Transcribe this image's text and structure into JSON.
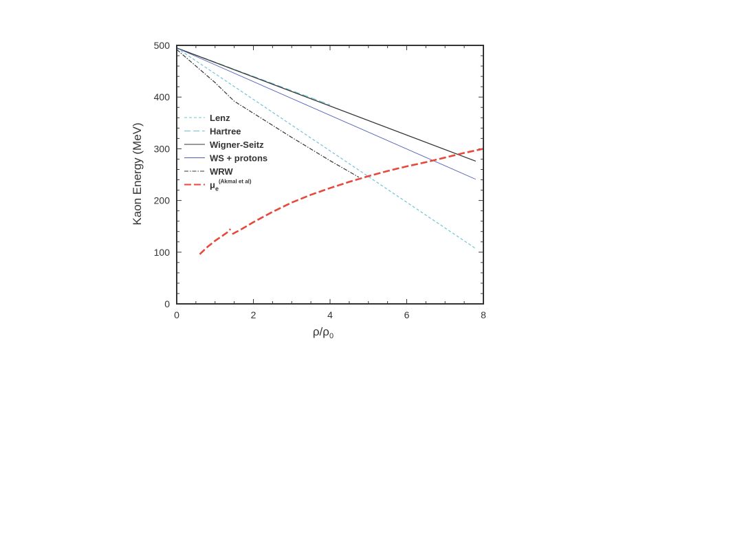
{
  "chart_data": {
    "type": "line",
    "title": "",
    "xlabel": "ρ/ρ",
    "xlabel_sub": "0",
    "ylabel": "Kaon Energy (MeV)",
    "xlim": [
      0,
      8
    ],
    "ylim": [
      0,
      500
    ],
    "xticks": [
      "0",
      "2",
      "4",
      "6",
      "8"
    ],
    "yticks": [
      "0",
      "100",
      "200",
      "300",
      "400",
      "500"
    ],
    "grid": false,
    "legend_position": "middle-left",
    "series": [
      {
        "name": "Lenz",
        "color": "#6fc3d3",
        "dash": "4,3",
        "width": 1.2,
        "points": [
          [
            0,
            495
          ],
          [
            7.8,
            107
          ]
        ]
      },
      {
        "name": "Hartree",
        "color": "#6fc3d3",
        "dash": "9,4",
        "width": 1.2,
        "points": [
          [
            0,
            495
          ],
          [
            4.0,
            385
          ]
        ]
      },
      {
        "name": "Wigner-Seitz",
        "color": "#333333",
        "dash": "",
        "width": 1.3,
        "points": [
          [
            0,
            495
          ],
          [
            7.8,
            276
          ]
        ]
      },
      {
        "name": "WS + protons",
        "color": "#4f5fb8",
        "dash": "",
        "width": 0.9,
        "points": [
          [
            0,
            495
          ],
          [
            7.8,
            241
          ]
        ]
      },
      {
        "name": "WRW",
        "color": "#333333",
        "dash": "6,2,1.5,2",
        "width": 1.2,
        "points": [
          [
            0,
            492
          ],
          [
            1.0,
            428
          ],
          [
            1.5,
            392
          ],
          [
            3.0,
            322
          ],
          [
            4.0,
            277
          ],
          [
            4.75,
            245
          ]
        ]
      },
      {
        "name": "μ",
        "name_sub": "e",
        "name_sup": "(Akmal et al)",
        "color": "#e8483b",
        "dash": "10,4",
        "width": 2.6,
        "segments": [
          [
            [
              0.6,
              96
            ],
            [
              0.8,
              110
            ],
            [
              1.0,
              122
            ],
            [
              1.2,
              132
            ],
            [
              1.35,
              140
            ],
            [
              1.4,
              145
            ]
          ],
          [
            [
              1.45,
              135
            ],
            [
              1.7,
              145
            ],
            [
              2.0,
              158
            ],
            [
              2.5,
              178
            ],
            [
              3.0,
              196
            ],
            [
              3.5,
              211
            ],
            [
              4.0,
              224
            ],
            [
              4.5,
              236
            ],
            [
              5.0,
              247
            ],
            [
              5.5,
              257
            ],
            [
              6.0,
              266
            ],
            [
              6.5,
              274
            ],
            [
              7.0,
              283
            ],
            [
              7.5,
              292
            ],
            [
              8.0,
              300
            ]
          ]
        ]
      }
    ]
  }
}
